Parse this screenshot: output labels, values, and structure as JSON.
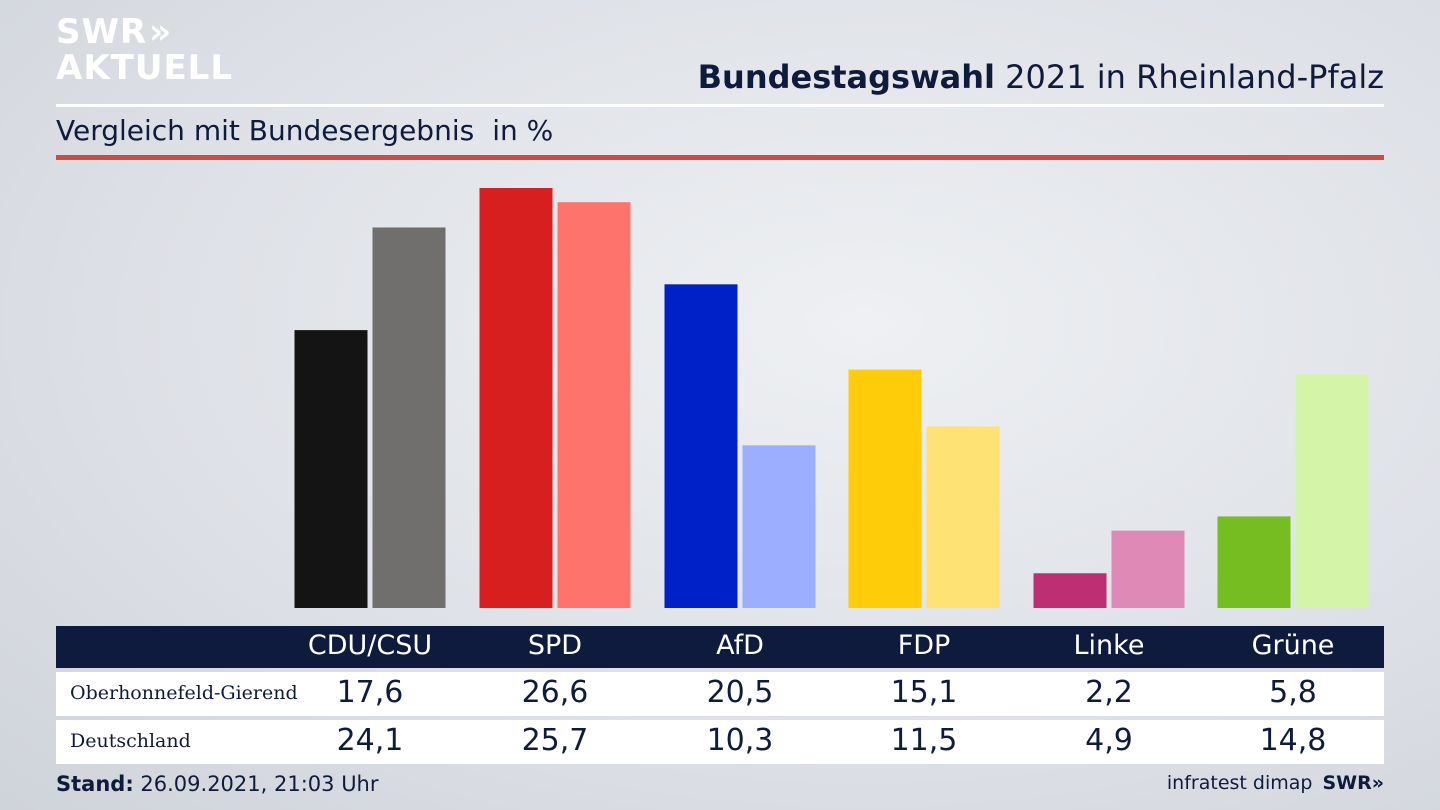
{
  "header": {
    "logo_line1": "SWR",
    "logo_arrows": "»",
    "logo_line2": "AKTUELL",
    "title_bold": "Bundestagswahl",
    "title_rest": "2021 in Rheinland-Pfalz",
    "subtitle": "Vergleich mit Bundesergebnis",
    "unit": "in %"
  },
  "chart_data": {
    "type": "bar",
    "title": "Bundestagswahl 2021 in Rheinland-Pfalz",
    "subtitle": "Vergleich mit Bundesergebnis in %",
    "categories": [
      "CDU/CSU",
      "SPD",
      "AfD",
      "FDP",
      "Linke",
      "Grüne"
    ],
    "series": [
      {
        "name": "Oberhonnefeld-Gierend",
        "values": [
          17.6,
          26.6,
          20.5,
          15.1,
          2.2,
          5.8
        ],
        "labels": [
          "17,6",
          "26,6",
          "20,5",
          "15,1",
          "2,2",
          "5,8"
        ],
        "colors": [
          "#141414",
          "#d81f1f",
          "#0021c8",
          "#ffcc0a",
          "#bd2f72",
          "#76bd22"
        ]
      },
      {
        "name": "Deutschland",
        "values": [
          24.1,
          25.7,
          10.3,
          11.5,
          4.9,
          14.8
        ],
        "labels": [
          "24,1",
          "25,7",
          "10,3",
          "11,5",
          "4,9",
          "14,8"
        ],
        "colors": [
          "#706f6d",
          "#ff736d",
          "#9caeff",
          "#ffe174",
          "#df8ab6",
          "#d4f5a8"
        ]
      }
    ],
    "ylim": [
      0,
      27
    ],
    "xlabel": "",
    "ylabel": "",
    "grid": false,
    "legend": "table-below"
  },
  "footer": {
    "stand_label": "Stand:",
    "stand_value": "26.09.2021, 21:03 Uhr",
    "source": "infratest dimap",
    "brand": "SWR»"
  }
}
